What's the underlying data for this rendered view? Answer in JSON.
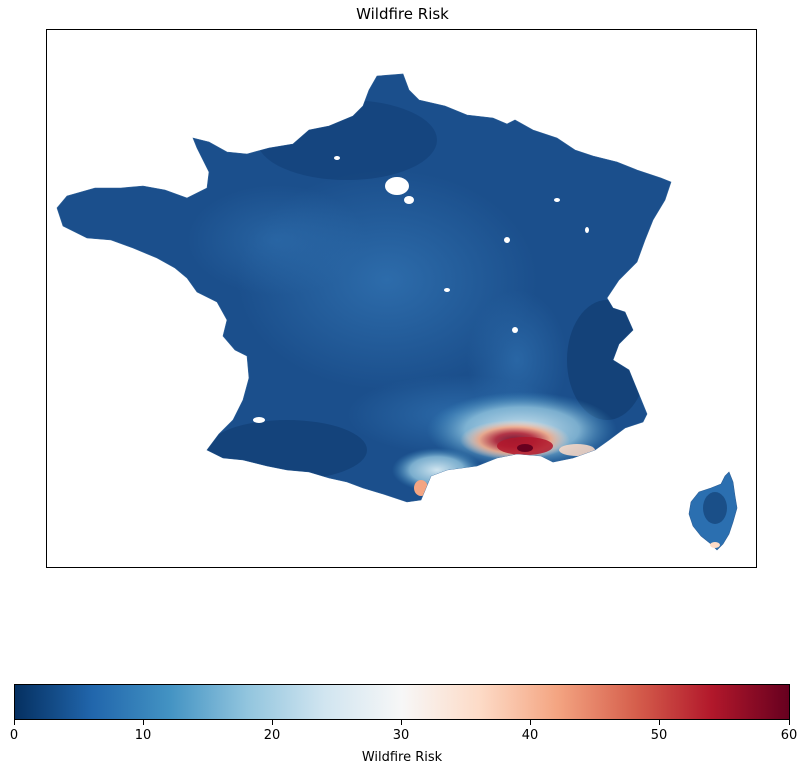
{
  "title": "Wildfire Risk",
  "colorbar": {
    "label": "Wildfire Risk",
    "min": 0,
    "max": 60,
    "ticks": [
      "0",
      "10",
      "20",
      "30",
      "40",
      "50",
      "60"
    ],
    "colormap": "RdBu_r",
    "colors": [
      "#053061",
      "#2166ac",
      "#4393c3",
      "#92c5de",
      "#d1e5f0",
      "#f7f7f7",
      "#fddbc7",
      "#f4a582",
      "#d6604d",
      "#b2182b",
      "#67001f"
    ]
  },
  "map": {
    "region": "France",
    "dominant_value_range": [
      0,
      10
    ],
    "hotspot_region": "south-east Mediterranean coast",
    "hotspot_max": 60
  }
}
